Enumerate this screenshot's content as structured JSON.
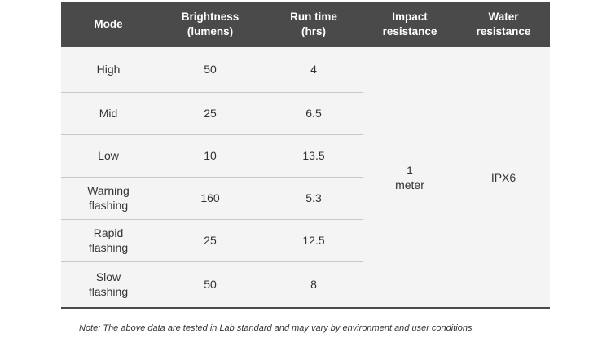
{
  "table": {
    "headers": [
      {
        "line1": "Mode",
        "line2": ""
      },
      {
        "line1": "Brightness",
        "line2": "(lumens)"
      },
      {
        "line1": "Run time",
        "line2": "(hrs)"
      },
      {
        "line1": "Impact",
        "line2": "resistance"
      },
      {
        "line1": "Water",
        "line2": "resistance"
      }
    ],
    "rows": [
      {
        "mode1": "High",
        "mode2": "",
        "brightness": "50",
        "runtime": "4"
      },
      {
        "mode1": "Mid",
        "mode2": "",
        "brightness": "25",
        "runtime": "6.5"
      },
      {
        "mode1": "Low",
        "mode2": "",
        "brightness": "10",
        "runtime": "13.5"
      },
      {
        "mode1": "Warning",
        "mode2": "flashing",
        "brightness": "160",
        "runtime": "5.3"
      },
      {
        "mode1": "Rapid",
        "mode2": "flashing",
        "brightness": "25",
        "runtime": "12.5"
      },
      {
        "mode1": "Slow",
        "mode2": "flashing",
        "brightness": "50",
        "runtime": "8"
      }
    ],
    "impact_resistance": {
      "line1": "1",
      "line2": "meter"
    },
    "water_resistance": "IPX6"
  },
  "note": "Note: The above data are tested in Lab standard and may vary by environment and user conditions."
}
